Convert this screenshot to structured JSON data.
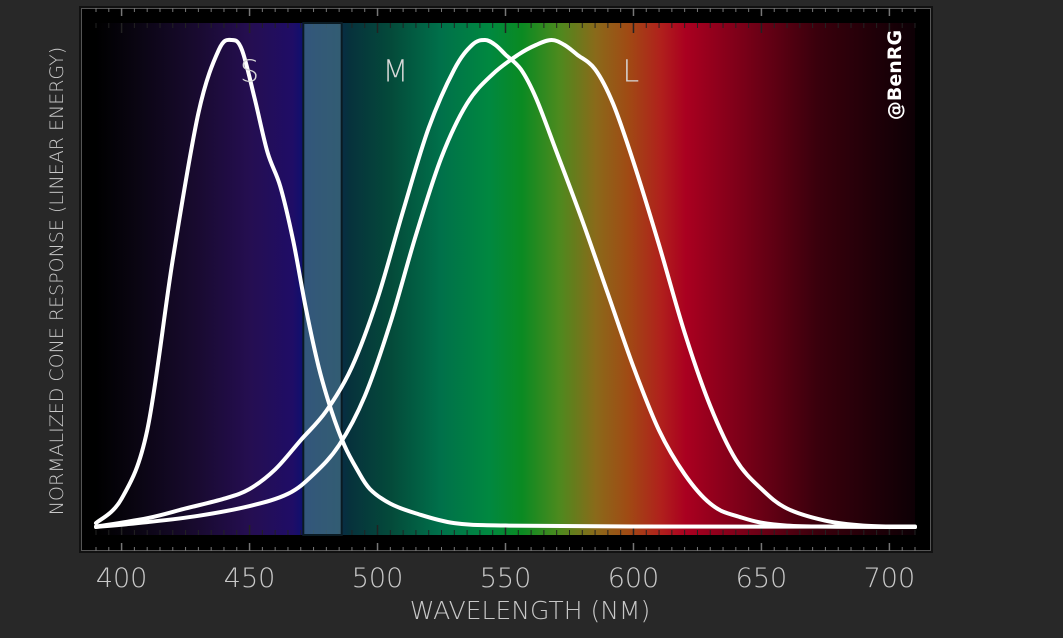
{
  "chart_data": {
    "type": "line",
    "xlabel": "WAVELENGTH (NM)",
    "ylabel": "NORMALIZED CONE RESPONSE (LINEAR ENERGY)",
    "xlim": [
      390,
      710
    ],
    "ylim": [
      0,
      1
    ],
    "x_ticks": [
      400,
      450,
      500,
      550,
      600,
      650,
      700
    ],
    "tick_labels": [
      "400",
      "450",
      "500",
      "550",
      "600",
      "650",
      "700"
    ],
    "grid": false,
    "watermark": "@BenRG",
    "highlight_band": {
      "x_range": [
        471,
        486
      ],
      "color": "#3f6a80"
    },
    "background": "visible spectrum gradient",
    "series": [
      {
        "name": "S",
        "color": "#ffffff",
        "label_at": [
          450,
          0.94
        ],
        "points": [
          [
            390,
            0.01
          ],
          [
            400,
            0.06
          ],
          [
            410,
            0.2
          ],
          [
            420,
            0.55
          ],
          [
            430,
            0.85
          ],
          [
            438,
            0.98
          ],
          [
            443,
            1.0
          ],
          [
            447,
            0.98
          ],
          [
            452,
            0.88
          ],
          [
            457,
            0.77
          ],
          [
            462,
            0.7
          ],
          [
            467,
            0.59
          ],
          [
            472,
            0.45
          ],
          [
            477,
            0.33
          ],
          [
            482,
            0.24
          ],
          [
            487,
            0.17
          ],
          [
            492,
            0.12
          ],
          [
            497,
            0.08
          ],
          [
            505,
            0.05
          ],
          [
            515,
            0.03
          ],
          [
            530,
            0.01
          ],
          [
            550,
            0.005
          ],
          [
            600,
            0.003
          ],
          [
            710,
            0.003
          ]
        ]
      },
      {
        "name": "M",
        "color": "#ffffff",
        "label_at": [
          507,
          0.94
        ],
        "points": [
          [
            390,
            0.003
          ],
          [
            410,
            0.02
          ],
          [
            425,
            0.04
          ],
          [
            440,
            0.06
          ],
          [
            450,
            0.08
          ],
          [
            460,
            0.12
          ],
          [
            470,
            0.18
          ],
          [
            480,
            0.24
          ],
          [
            490,
            0.33
          ],
          [
            500,
            0.47
          ],
          [
            510,
            0.65
          ],
          [
            520,
            0.82
          ],
          [
            530,
            0.94
          ],
          [
            537,
            0.99
          ],
          [
            542,
            1.0
          ],
          [
            546,
            0.99
          ],
          [
            550,
            0.97
          ],
          [
            556,
            0.94
          ],
          [
            562,
            0.88
          ],
          [
            570,
            0.77
          ],
          [
            580,
            0.63
          ],
          [
            590,
            0.48
          ],
          [
            600,
            0.33
          ],
          [
            610,
            0.2
          ],
          [
            620,
            0.11
          ],
          [
            630,
            0.05
          ],
          [
            640,
            0.025
          ],
          [
            660,
            0.005
          ],
          [
            710,
            0.002
          ]
        ]
      },
      {
        "name": "L",
        "color": "#ffffff",
        "label_at": [
          599,
          0.94
        ],
        "points": [
          [
            390,
            0.002
          ],
          [
            410,
            0.012
          ],
          [
            430,
            0.025
          ],
          [
            450,
            0.045
          ],
          [
            465,
            0.07
          ],
          [
            475,
            0.11
          ],
          [
            485,
            0.17
          ],
          [
            495,
            0.27
          ],
          [
            505,
            0.42
          ],
          [
            515,
            0.6
          ],
          [
            525,
            0.76
          ],
          [
            535,
            0.87
          ],
          [
            545,
            0.93
          ],
          [
            555,
            0.97
          ],
          [
            562,
            0.99
          ],
          [
            568,
            1.0
          ],
          [
            573,
            0.99
          ],
          [
            578,
            0.97
          ],
          [
            585,
            0.94
          ],
          [
            592,
            0.87
          ],
          [
            600,
            0.75
          ],
          [
            610,
            0.58
          ],
          [
            620,
            0.4
          ],
          [
            630,
            0.25
          ],
          [
            640,
            0.14
          ],
          [
            650,
            0.08
          ],
          [
            660,
            0.04
          ],
          [
            675,
            0.015
          ],
          [
            690,
            0.005
          ],
          [
            710,
            0.002
          ]
        ]
      }
    ]
  }
}
